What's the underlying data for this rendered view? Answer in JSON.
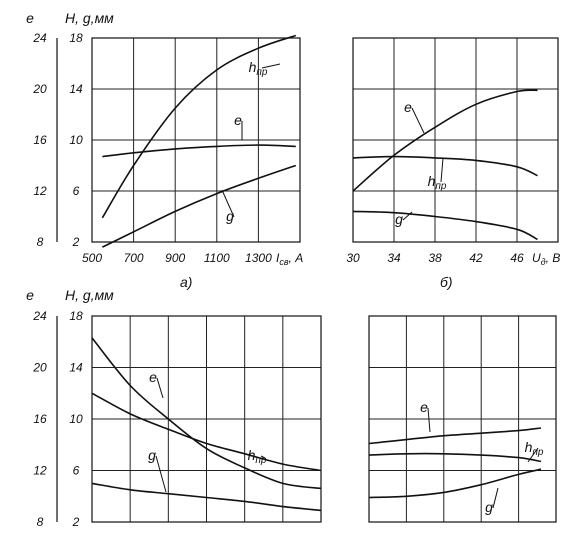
{
  "chart_data": [
    {
      "type": "line",
      "panel": "a",
      "caption": "а)",
      "left_axis_label": "e",
      "right_axis_label": "H, g,мм",
      "xlabel": "Iсв, А",
      "xlabel_main": "I",
      "xlabel_sub": "св",
      "xlabel_unit": ", А",
      "xlim": [
        500,
        1500
      ],
      "x_ticks": [
        "500",
        "700",
        "900",
        "1100",
        "1300"
      ],
      "x_tick_values": [
        500,
        700,
        900,
        1100,
        1300
      ],
      "hg_lim": [
        2,
        18
      ],
      "hg_ticks": [
        "2",
        "6",
        "10",
        "14",
        "18"
      ],
      "e_ticks": [
        "8",
        "12",
        "16",
        "20",
        "24"
      ],
      "grid": true,
      "series": [
        {
          "name": "hпр",
          "label_main": "h",
          "label_sub": "пр",
          "axis": "H",
          "x": [
            550,
            700,
            900,
            1100,
            1300,
            1480
          ],
          "y": [
            3.9,
            8.0,
            12.5,
            15.5,
            17.2,
            18.2
          ]
        },
        {
          "name": "e",
          "label_main": "e",
          "axis": "H",
          "x": [
            550,
            700,
            900,
            1100,
            1300,
            1480
          ],
          "y": [
            8.7,
            9.0,
            9.3,
            9.5,
            9.6,
            9.5
          ]
        },
        {
          "name": "g",
          "label_main": "g",
          "axis": "H",
          "x": [
            550,
            700,
            900,
            1100,
            1300,
            1480
          ],
          "y": [
            1.6,
            2.8,
            4.4,
            5.8,
            7.0,
            8.0
          ]
        }
      ]
    },
    {
      "type": "line",
      "panel": "b",
      "caption": "б)",
      "xlabel": "Uд, В",
      "xlabel_main": "U",
      "xlabel_sub": "д",
      "xlabel_unit": ", В",
      "xlim": [
        30,
        50
      ],
      "x_ticks": [
        "30",
        "34",
        "38",
        "42",
        "46"
      ],
      "x_tick_values": [
        30,
        34,
        38,
        42,
        46
      ],
      "hg_lim": [
        2,
        18
      ],
      "grid": true,
      "series": [
        {
          "name": "e",
          "label_main": "e",
          "axis": "H",
          "x": [
            30,
            34,
            38,
            42,
            46,
            48
          ],
          "y": [
            6.0,
            8.8,
            11.0,
            12.8,
            13.8,
            13.9
          ]
        },
        {
          "name": "hпр",
          "label_main": "h",
          "label_sub": "пр",
          "axis": "H",
          "x": [
            30,
            34,
            38,
            42,
            46,
            48
          ],
          "y": [
            8.6,
            8.7,
            8.6,
            8.4,
            7.9,
            7.2
          ]
        },
        {
          "name": "g",
          "label_main": "g",
          "axis": "H",
          "x": [
            30,
            34,
            38,
            42,
            46,
            48
          ],
          "y": [
            4.4,
            4.3,
            4.0,
            3.6,
            3.0,
            2.2
          ]
        }
      ]
    },
    {
      "type": "line",
      "panel": "c",
      "left_axis_label": "e",
      "right_axis_label": "H, g,мм",
      "xlim": [
        0,
        6
      ],
      "hg_lim": [
        2,
        18
      ],
      "hg_ticks": [
        "2",
        "6",
        "10",
        "14",
        "18"
      ],
      "e_ticks": [
        "8",
        "12",
        "16",
        "20",
        "24"
      ],
      "grid": true,
      "series": [
        {
          "name": "e",
          "label_main": "e",
          "axis": "H",
          "x": [
            0,
            1,
            2,
            3,
            4,
            5,
            6
          ],
          "y": [
            16.3,
            12.6,
            10.0,
            7.7,
            6.2,
            5.0,
            4.6
          ]
        },
        {
          "name": "hпр",
          "label_main": "h",
          "label_sub": "пр",
          "axis": "H",
          "x": [
            0,
            1,
            2,
            3,
            4,
            5,
            6
          ],
          "y": [
            12.0,
            10.4,
            9.2,
            8.1,
            7.3,
            6.5,
            6.0
          ]
        },
        {
          "name": "g",
          "label_main": "g",
          "axis": "H",
          "x": [
            0,
            1,
            2,
            3,
            4,
            5,
            6
          ],
          "y": [
            5.0,
            4.5,
            4.2,
            3.9,
            3.6,
            3.2,
            2.9
          ]
        }
      ]
    },
    {
      "type": "line",
      "panel": "d",
      "xlim": [
        0,
        5
      ],
      "hg_lim": [
        2,
        18
      ],
      "grid": true,
      "series": [
        {
          "name": "e",
          "label_main": "e",
          "axis": "H",
          "x": [
            0,
            1,
            2,
            3,
            4,
            4.6
          ],
          "y": [
            8.1,
            8.4,
            8.7,
            8.9,
            9.1,
            9.3
          ]
        },
        {
          "name": "hпр",
          "label_main": "h",
          "label_sub": "пр",
          "axis": "H",
          "x": [
            0,
            1,
            2,
            3,
            4,
            4.6
          ],
          "y": [
            7.2,
            7.3,
            7.3,
            7.2,
            7.0,
            6.7
          ]
        },
        {
          "name": "g",
          "label_main": "g",
          "axis": "H",
          "x": [
            0,
            1,
            2,
            3,
            4,
            4.6
          ],
          "y": [
            3.9,
            4.0,
            4.3,
            4.9,
            5.7,
            6.1
          ]
        }
      ]
    }
  ]
}
